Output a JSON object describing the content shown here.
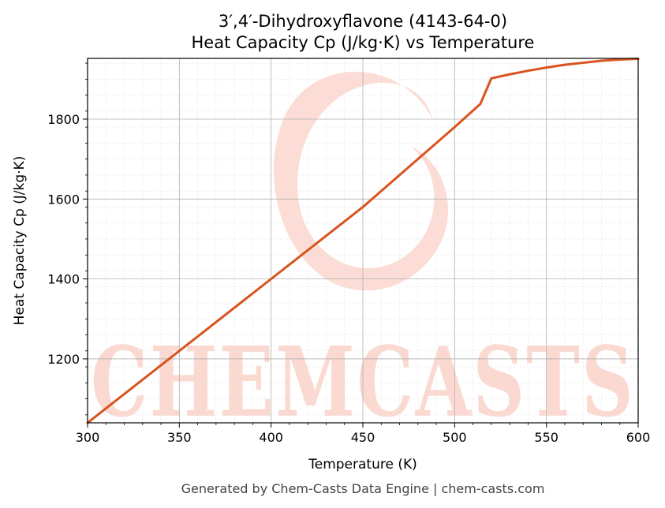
{
  "chart_data": {
    "type": "line",
    "title": "3′,4′-Dihydroxyflavone (4143-64-0)",
    "subtitle": "Heat Capacity Cp (J/kg·K) vs Temperature",
    "xlabel": "Temperature (K)",
    "ylabel": "Heat Capacity Cp (J/kg·K)",
    "xlim": [
      300,
      600
    ],
    "ylim": [
      1040,
      1952
    ],
    "xticks": [
      300,
      350,
      400,
      450,
      500,
      550,
      600
    ],
    "yticks": [
      1200,
      1400,
      1600,
      1800
    ],
    "grid": true,
    "legend": "none",
    "line_color": "#d9531e",
    "series": [
      {
        "x": [
          300,
          350,
          400,
          450,
          500,
          514,
          520,
          530,
          540,
          550,
          560,
          570,
          580,
          590,
          600
        ],
        "y": [
          1040,
          1220,
          1400,
          1580,
          1780,
          1838,
          1902,
          1912,
          1921,
          1929,
          1936,
          1941,
          1946,
          1949,
          1951
        ]
      }
    ]
  },
  "watermark": {
    "text": "CHEMCASTS",
    "color": "#fbd9d1"
  },
  "footer": {
    "text": "Generated by Chem-Casts Data Engine | chem-casts.com"
  }
}
